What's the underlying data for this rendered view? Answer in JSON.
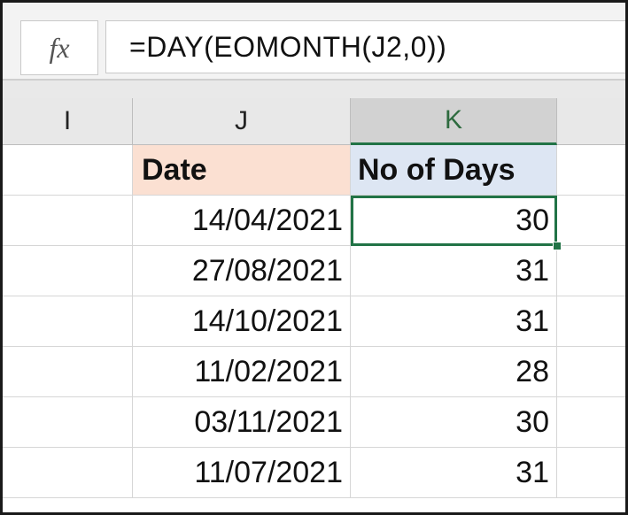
{
  "formula_bar": {
    "fx_label": "fx",
    "formula": "=DAY(EOMONTH(J2,0))"
  },
  "columns": [
    "I",
    "J",
    "K"
  ],
  "selected_column": "K",
  "table": {
    "headers": {
      "J": "Date",
      "K": "No of Days"
    },
    "rows": [
      {
        "date": "14/04/2021",
        "days": "30"
      },
      {
        "date": "27/08/2021",
        "days": "31"
      },
      {
        "date": "14/10/2021",
        "days": "31"
      },
      {
        "date": "11/02/2021",
        "days": "28"
      },
      {
        "date": "03/11/2021",
        "days": "30"
      },
      {
        "date": "11/07/2021",
        "days": "31"
      }
    ]
  },
  "colors": {
    "selection": "#217346",
    "date_header_fill": "#fbe0d2",
    "days_header_fill": "#dde6f3"
  }
}
